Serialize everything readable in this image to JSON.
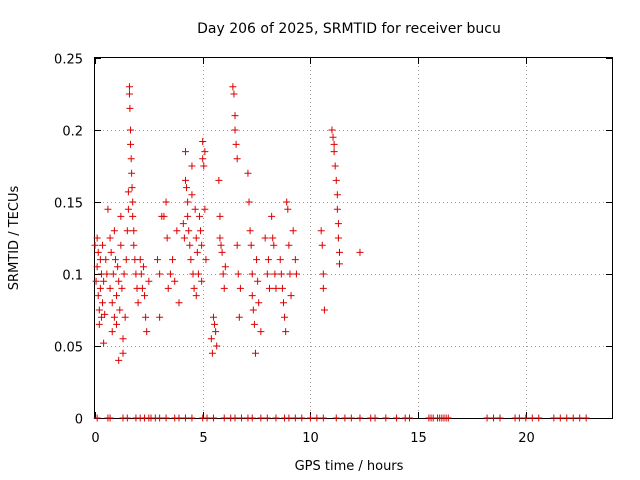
{
  "chart_data": {
    "type": "scatter",
    "title": "Day 206 of 2025, SRMTID for receiver bucu",
    "xlabel": "GPS time / hours",
    "ylabel": "SRMTID / TECUs",
    "xlim": [
      0,
      24
    ],
    "ylim": [
      0,
      0.25
    ],
    "xticks": [
      0,
      5,
      10,
      15,
      20
    ],
    "xtick_labels": [
      "0",
      "5",
      "10",
      "15",
      "20"
    ],
    "yticks": [
      0,
      0.05,
      0.1,
      0.15,
      0.2,
      0.25
    ],
    "ytick_labels": [
      "0",
      "0.05",
      "0.1",
      "0.15",
      "0.2",
      "0.25"
    ],
    "grid": true,
    "marker": "plus",
    "color": "#dd0000",
    "series": [
      {
        "name": "SRMTID",
        "points": [
          [
            0.0,
            0.12
          ],
          [
            0.05,
            0.095
          ],
          [
            0.1,
            0.105
          ],
          [
            0.1,
            0.125
          ],
          [
            0.15,
            0.085
          ],
          [
            0.15,
            0.115
          ],
          [
            0.2,
            0.075
          ],
          [
            0.2,
            0.065
          ],
          [
            0.25,
            0.11
          ],
          [
            0.25,
            0.09
          ],
          [
            0.3,
            0.07
          ],
          [
            0.3,
            0.1
          ],
          [
            0.35,
            0.08
          ],
          [
            0.35,
            0.12
          ],
          [
            0.4,
            0.095
          ],
          [
            0.4,
            0.052
          ],
          [
            0.45,
            0.072
          ],
          [
            0.5,
            0.11
          ],
          [
            0.55,
            0.1
          ],
          [
            0.6,
            0.145
          ],
          [
            0.7,
            0.125
          ],
          [
            0.7,
            0.09
          ],
          [
            0.75,
            0.115
          ],
          [
            0.8,
            0.08
          ],
          [
            0.8,
            0.06
          ],
          [
            0.85,
            0.1
          ],
          [
            0.9,
            0.07
          ],
          [
            0.9,
            0.13
          ],
          [
            0.95,
            0.11
          ],
          [
            1.0,
            0.085
          ],
          [
            1.0,
            0.065
          ],
          [
            1.05,
            0.105
          ],
          [
            1.1,
            0.04
          ],
          [
            1.1,
            0.095
          ],
          [
            1.15,
            0.075
          ],
          [
            1.2,
            0.12
          ],
          [
            1.2,
            0.14
          ],
          [
            1.25,
            0.09
          ],
          [
            1.3,
            0.055
          ],
          [
            1.3,
            0.045
          ],
          [
            1.35,
            0.1
          ],
          [
            1.4,
            0.07
          ],
          [
            1.45,
            0.11
          ],
          [
            1.5,
            0.13
          ],
          [
            1.55,
            0.157
          ],
          [
            1.55,
            0.145
          ],
          [
            1.6,
            0.23
          ],
          [
            1.6,
            0.225
          ],
          [
            1.62,
            0.215
          ],
          [
            1.65,
            0.2
          ],
          [
            1.65,
            0.19
          ],
          [
            1.68,
            0.18
          ],
          [
            1.7,
            0.17
          ],
          [
            1.72,
            0.16
          ],
          [
            1.75,
            0.15
          ],
          [
            1.75,
            0.14
          ],
          [
            1.8,
            0.13
          ],
          [
            1.8,
            0.12
          ],
          [
            1.85,
            0.11
          ],
          [
            1.9,
            0.1
          ],
          [
            1.95,
            0.09
          ],
          [
            2.0,
            0.08
          ],
          [
            2.1,
            0.11
          ],
          [
            2.15,
            0.1
          ],
          [
            2.2,
            0.09
          ],
          [
            2.25,
            0.105
          ],
          [
            2.3,
            0.085
          ],
          [
            2.35,
            0.07
          ],
          [
            2.4,
            0.06
          ],
          [
            2.5,
            0.095
          ],
          [
            2.9,
            0.11
          ],
          [
            3.0,
            0.1
          ],
          [
            3.0,
            0.07
          ],
          [
            3.1,
            0.14
          ],
          [
            3.2,
            0.14
          ],
          [
            3.3,
            0.15
          ],
          [
            3.35,
            0.125
          ],
          [
            3.4,
            0.09
          ],
          [
            3.5,
            0.1
          ],
          [
            3.6,
            0.11
          ],
          [
            3.7,
            0.095
          ],
          [
            3.8,
            0.13
          ],
          [
            3.9,
            0.08
          ],
          [
            4.1,
            0.135
          ],
          [
            4.15,
            0.125
          ],
          [
            4.2,
            0.185
          ],
          [
            4.2,
            0.165
          ],
          [
            4.25,
            0.16
          ],
          [
            4.3,
            0.15
          ],
          [
            4.3,
            0.14
          ],
          [
            4.35,
            0.13
          ],
          [
            4.4,
            0.12
          ],
          [
            4.45,
            0.11
          ],
          [
            4.5,
            0.175
          ],
          [
            4.5,
            0.155
          ],
          [
            4.55,
            0.1
          ],
          [
            4.6,
            0.09
          ],
          [
            4.65,
            0.145
          ],
          [
            4.7,
            0.125
          ],
          [
            4.7,
            0.085
          ],
          [
            4.75,
            0.115
          ],
          [
            4.8,
            0.1
          ],
          [
            4.85,
            0.14
          ],
          [
            4.9,
            0.13
          ],
          [
            4.95,
            0.12
          ],
          [
            4.95,
            0.095
          ],
          [
            5.0,
            0.192
          ],
          [
            5.0,
            0.18
          ],
          [
            5.05,
            0.175
          ],
          [
            5.1,
            0.185
          ],
          [
            5.1,
            0.145
          ],
          [
            5.15,
            0.11
          ],
          [
            5.4,
            0.055
          ],
          [
            5.45,
            0.045
          ],
          [
            5.5,
            0.07
          ],
          [
            5.55,
            0.065
          ],
          [
            5.6,
            0.06
          ],
          [
            5.65,
            0.05
          ],
          [
            5.75,
            0.165
          ],
          [
            5.8,
            0.14
          ],
          [
            5.8,
            0.125
          ],
          [
            5.85,
            0.12
          ],
          [
            5.9,
            0.115
          ],
          [
            5.95,
            0.1
          ],
          [
            6.0,
            0.09
          ],
          [
            6.05,
            0.105
          ],
          [
            6.4,
            0.23
          ],
          [
            6.45,
            0.225
          ],
          [
            6.5,
            0.21
          ],
          [
            6.5,
            0.2
          ],
          [
            6.55,
            0.19
          ],
          [
            6.6,
            0.18
          ],
          [
            6.6,
            0.12
          ],
          [
            6.65,
            0.1
          ],
          [
            6.7,
            0.07
          ],
          [
            6.75,
            0.09
          ],
          [
            7.1,
            0.17
          ],
          [
            7.15,
            0.15
          ],
          [
            7.2,
            0.13
          ],
          [
            7.25,
            0.12
          ],
          [
            7.3,
            0.1
          ],
          [
            7.3,
            0.085
          ],
          [
            7.35,
            0.075
          ],
          [
            7.4,
            0.065
          ],
          [
            7.45,
            0.045
          ],
          [
            7.5,
            0.11
          ],
          [
            7.55,
            0.095
          ],
          [
            7.6,
            0.08
          ],
          [
            7.7,
            0.06
          ],
          [
            7.9,
            0.125
          ],
          [
            8.0,
            0.1
          ],
          [
            8.05,
            0.11
          ],
          [
            8.1,
            0.09
          ],
          [
            8.2,
            0.14
          ],
          [
            8.25,
            0.125
          ],
          [
            8.3,
            0.12
          ],
          [
            8.35,
            0.1
          ],
          [
            8.4,
            0.09
          ],
          [
            8.6,
            0.11
          ],
          [
            8.65,
            0.1
          ],
          [
            8.7,
            0.09
          ],
          [
            8.75,
            0.08
          ],
          [
            8.8,
            0.07
          ],
          [
            8.85,
            0.06
          ],
          [
            8.9,
            0.15
          ],
          [
            8.95,
            0.145
          ],
          [
            9.0,
            0.12
          ],
          [
            9.05,
            0.1
          ],
          [
            9.1,
            0.085
          ],
          [
            9.2,
            0.13
          ],
          [
            9.3,
            0.11
          ],
          [
            9.35,
            0.1
          ],
          [
            10.5,
            0.13
          ],
          [
            10.55,
            0.12
          ],
          [
            10.6,
            0.1
          ],
          [
            10.6,
            0.09
          ],
          [
            10.65,
            0.075
          ],
          [
            11.0,
            0.2
          ],
          [
            11.05,
            0.195
          ],
          [
            11.1,
            0.19
          ],
          [
            11.1,
            0.185
          ],
          [
            11.15,
            0.175
          ],
          [
            11.2,
            0.165
          ],
          [
            11.25,
            0.155
          ],
          [
            11.25,
            0.145
          ],
          [
            11.3,
            0.135
          ],
          [
            11.3,
            0.125
          ],
          [
            11.35,
            0.115
          ],
          [
            11.35,
            0.107
          ],
          [
            12.3,
            0.115
          ],
          [
            0.1,
            0
          ],
          [
            0.6,
            0
          ],
          [
            0.7,
            0
          ],
          [
            1.3,
            0
          ],
          [
            1.5,
            0
          ],
          [
            1.9,
            0
          ],
          [
            2.1,
            0
          ],
          [
            2.3,
            0
          ],
          [
            2.5,
            0
          ],
          [
            2.6,
            0
          ],
          [
            2.8,
            0
          ],
          [
            3.0,
            0
          ],
          [
            3.3,
            0
          ],
          [
            3.7,
            0
          ],
          [
            3.9,
            0
          ],
          [
            4.2,
            0
          ],
          [
            4.5,
            0
          ],
          [
            5.0,
            0
          ],
          [
            5.2,
            0
          ],
          [
            5.5,
            0
          ],
          [
            6.0,
            0
          ],
          [
            6.3,
            0
          ],
          [
            6.5,
            0
          ],
          [
            6.8,
            0
          ],
          [
            7.1,
            0
          ],
          [
            7.3,
            0
          ],
          [
            7.7,
            0
          ],
          [
            8.0,
            0
          ],
          [
            8.4,
            0
          ],
          [
            8.8,
            0
          ],
          [
            9.0,
            0
          ],
          [
            9.3,
            0
          ],
          [
            9.6,
            0
          ],
          [
            10.0,
            0
          ],
          [
            10.3,
            0
          ],
          [
            10.6,
            0
          ],
          [
            11.2,
            0
          ],
          [
            11.6,
            0
          ],
          [
            11.9,
            0
          ],
          [
            12.3,
            0
          ],
          [
            12.8,
            0
          ],
          [
            13.0,
            0
          ],
          [
            13.5,
            0
          ],
          [
            14.0,
            0
          ],
          [
            14.4,
            0
          ],
          [
            14.6,
            0
          ],
          [
            15.5,
            0
          ],
          [
            15.6,
            0
          ],
          [
            15.7,
            0
          ],
          [
            15.9,
            0
          ],
          [
            16.0,
            0
          ],
          [
            16.1,
            0
          ],
          [
            16.2,
            0
          ],
          [
            16.3,
            0
          ],
          [
            16.4,
            0
          ],
          [
            18.2,
            0
          ],
          [
            18.5,
            0
          ],
          [
            18.8,
            0
          ],
          [
            19.5,
            0
          ],
          [
            19.7,
            0
          ],
          [
            20.0,
            0
          ],
          [
            20.3,
            0
          ],
          [
            20.6,
            0
          ],
          [
            21.3,
            0
          ],
          [
            21.6,
            0
          ],
          [
            21.9,
            0
          ],
          [
            22.2,
            0
          ],
          [
            22.5,
            0
          ],
          [
            22.8,
            0
          ]
        ]
      }
    ]
  }
}
